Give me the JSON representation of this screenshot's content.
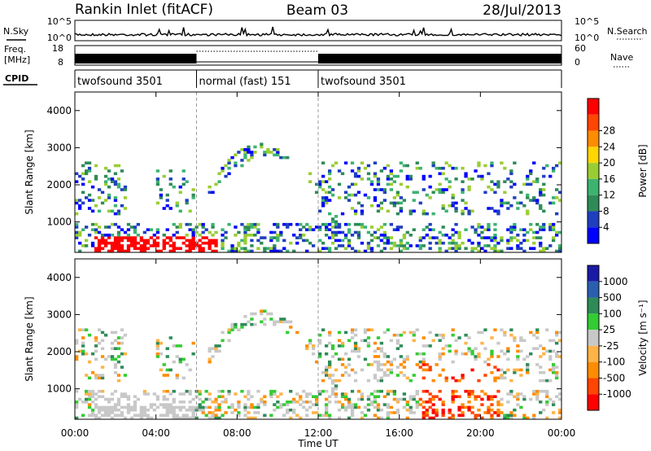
{
  "header": {
    "station": "Rankin Inlet (fitACF)",
    "beam": "Beam 03",
    "date": "28/Jul/2013"
  },
  "summary_panels": {
    "nsky": {
      "label": "N.Sky",
      "ticks": [
        "10^5",
        "10^0"
      ],
      "right_label": "N.Search",
      "right_ticks": [
        "10^5",
        "10^0"
      ]
    },
    "freq": {
      "label_line1": "Freq.",
      "label_line2": "[MHz]",
      "ticks": [
        "18",
        "8"
      ],
      "right_label": "Nave",
      "right_ticks": [
        "60",
        "0"
      ]
    },
    "cpid": {
      "label": "CPID"
    }
  },
  "cpid_segments": [
    {
      "label": "twofsound 3501",
      "start_hour": 0,
      "end_hour": 6
    },
    {
      "label": "normal (fast) 151",
      "start_hour": 6,
      "end_hour": 12
    },
    {
      "label": "twofsound 3501",
      "start_hour": 12,
      "end_hour": 24
    }
  ],
  "colors": {
    "power": [
      "#0000ff",
      "#1f3fbf",
      "#2e8b57",
      "#3cb371",
      "#9acd32",
      "#ffd700",
      "#ff8c00",
      "#ff4500",
      "#ff0000"
    ],
    "velocity": [
      "#1a1aa6",
      "#2a5fb0",
      "#2e8b57",
      "#33cc33",
      "#c8c8c8",
      "#ffb347",
      "#ff8c00",
      "#ff4500",
      "#ff0000"
    ]
  },
  "chart_data": [
    {
      "type": "heatmap",
      "name_hint": "power",
      "ylabel": "Slant Range [km]",
      "xlabel": "Time UT",
      "x_ticks": [
        "00:00",
        "04:00",
        "08:00",
        "12:00",
        "16:00",
        "20:00",
        "00:00"
      ],
      "y_ticks": [
        "1000",
        "2000",
        "3000",
        "4000"
      ],
      "xlim_hours": [
        0,
        24
      ],
      "ylim_km": [
        180,
        4500
      ],
      "colorbar": {
        "label": "Power [dB]",
        "ticks": [
          "4",
          "8",
          "12",
          "16",
          "20",
          "24",
          "28"
        ]
      }
    },
    {
      "type": "heatmap",
      "name_hint": "velocity",
      "ylabel": "Slant Range [km]",
      "xlabel": "Time UT",
      "x_ticks": [
        "00:00",
        "04:00",
        "08:00",
        "12:00",
        "16:00",
        "20:00",
        "00:00"
      ],
      "y_ticks": [
        "1000",
        "2000",
        "3000",
        "4000"
      ],
      "xlim_hours": [
        0,
        24
      ],
      "ylim_km": [
        180,
        4500
      ],
      "colorbar": {
        "label": "Velocity [m s⁻¹]",
        "ticks": [
          "1000",
          "500",
          "100",
          "25",
          "-25",
          "-100",
          "-500",
          "-1000"
        ]
      }
    }
  ]
}
